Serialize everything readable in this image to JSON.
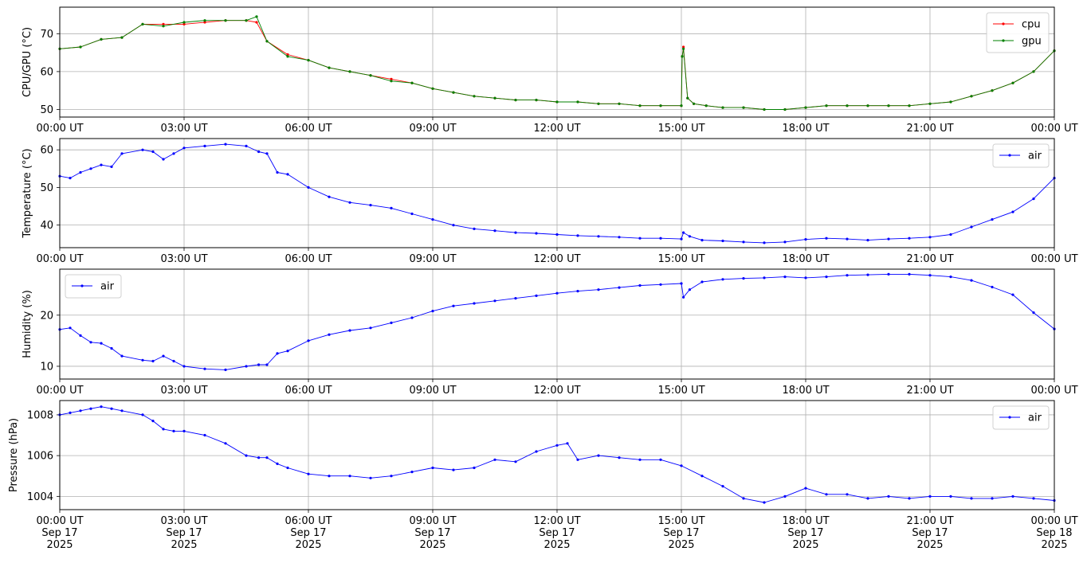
{
  "chart_data": [
    {
      "type": "line",
      "ylabel": "CPU/GPU (°C)",
      "ylim": [
        48,
        77
      ],
      "yticks": [
        50,
        60,
        70
      ],
      "xlim": [
        "2025-09-17T00:00Z",
        "2025-09-18T00:00Z"
      ],
      "xtick_labels": [
        "00:00 UT",
        "03:00 UT",
        "06:00 UT",
        "09:00 UT",
        "12:00 UT",
        "15:00 UT",
        "18:00 UT",
        "21:00 UT",
        "00:00 UT"
      ],
      "grid": true,
      "legend_position": "top-right",
      "series": [
        {
          "name": "cpu",
          "color": "#ff0000",
          "marker": "dot",
          "x_hours": [
            0,
            0.5,
            1,
            1.5,
            2,
            2.5,
            3,
            3.5,
            4,
            4.5,
            4.75,
            5,
            5.5,
            6,
            6.5,
            7,
            7.5,
            8,
            8.5,
            9,
            9.5,
            10,
            10.5,
            11,
            11.5,
            12,
            12.5,
            13,
            13.5,
            14,
            14.5,
            15,
            15.02,
            15.05,
            15.15,
            15.3,
            15.6,
            16,
            16.5,
            17,
            17.5,
            18,
            18.5,
            19,
            19.5,
            20,
            20.5,
            21,
            21.5,
            22,
            22.5,
            23,
            23.5,
            24
          ],
          "values": [
            66,
            66.5,
            68.5,
            69,
            72.5,
            72.5,
            72.5,
            73,
            73.5,
            73.5,
            73,
            68,
            64.5,
            63,
            61,
            60,
            59,
            58,
            57,
            55.5,
            54.5,
            53.5,
            53,
            52.5,
            52.5,
            52,
            52,
            51.5,
            51.5,
            51,
            51,
            51,
            64,
            66.5,
            53,
            51.5,
            51,
            50.5,
            50.5,
            50,
            50,
            50.5,
            51,
            51,
            51,
            51,
            51,
            51.5,
            52,
            53.5,
            55,
            57,
            60,
            65.5
          ]
        },
        {
          "name": "gpu",
          "color": "#008000",
          "marker": "dot",
          "x_hours": [
            0,
            0.5,
            1,
            1.5,
            2,
            2.5,
            3,
            3.5,
            4,
            4.5,
            4.75,
            5,
            5.5,
            6,
            6.5,
            7,
            7.5,
            8,
            8.5,
            9,
            9.5,
            10,
            10.5,
            11,
            11.5,
            12,
            12.5,
            13,
            13.5,
            14,
            14.5,
            15,
            15.02,
            15.05,
            15.15,
            15.3,
            15.6,
            16,
            16.5,
            17,
            17.5,
            18,
            18.5,
            19,
            19.5,
            20,
            20.5,
            21,
            21.5,
            22,
            22.5,
            23,
            23.5,
            24
          ],
          "values": [
            66,
            66.5,
            68.5,
            69,
            72.5,
            72,
            73,
            73.5,
            73.5,
            73.5,
            74.5,
            68,
            64,
            63,
            61,
            60,
            59,
            57.5,
            57,
            55.5,
            54.5,
            53.5,
            53,
            52.5,
            52.5,
            52,
            52,
            51.5,
            51.5,
            51,
            51,
            51,
            64,
            66,
            53,
            51.5,
            51,
            50.5,
            50.5,
            50,
            50,
            50.5,
            51,
            51,
            51,
            51,
            51,
            51.5,
            52,
            53.5,
            55,
            57,
            60,
            65.5
          ]
        }
      ]
    },
    {
      "type": "line",
      "ylabel": "Temperature (°C)",
      "ylim": [
        34,
        63
      ],
      "yticks": [
        40,
        50,
        60
      ],
      "xlim": [
        "2025-09-17T00:00Z",
        "2025-09-18T00:00Z"
      ],
      "xtick_labels": [
        "00:00 UT",
        "03:00 UT",
        "06:00 UT",
        "09:00 UT",
        "12:00 UT",
        "15:00 UT",
        "18:00 UT",
        "21:00 UT",
        "00:00 UT"
      ],
      "grid": true,
      "legend_position": "top-right",
      "series": [
        {
          "name": "air",
          "color": "#0000ff",
          "marker": "dot",
          "x_hours": [
            0,
            0.25,
            0.5,
            0.75,
            1,
            1.25,
            1.5,
            2,
            2.25,
            2.5,
            2.75,
            3,
            3.5,
            4,
            4.5,
            4.8,
            5,
            5.25,
            5.5,
            6,
            6.5,
            7,
            7.5,
            8,
            8.5,
            9,
            9.5,
            10,
            10.5,
            11,
            11.5,
            12,
            12.5,
            13,
            13.5,
            14,
            14.5,
            15,
            15.05,
            15.2,
            15.5,
            16,
            16.5,
            17,
            17.5,
            18,
            18.5,
            19,
            19.5,
            20,
            20.5,
            21,
            21.5,
            22,
            22.5,
            23,
            23.5,
            24
          ],
          "values": [
            53,
            52.5,
            54,
            55,
            56,
            55.5,
            59,
            60,
            59.5,
            57.5,
            59,
            60.5,
            61,
            61.5,
            61,
            59.5,
            59,
            54,
            53.5,
            50,
            47.5,
            46,
            45.3,
            44.5,
            43,
            41.5,
            40,
            39,
            38.5,
            38,
            37.8,
            37.5,
            37.2,
            37,
            36.8,
            36.5,
            36.5,
            36.3,
            38,
            37,
            36,
            35.8,
            35.5,
            35.3,
            35.5,
            36.2,
            36.5,
            36.3,
            36,
            36.3,
            36.5,
            36.8,
            37.5,
            39.5,
            41.5,
            43.5,
            47,
            52.5
          ]
        }
      ]
    },
    {
      "type": "line",
      "ylabel": "Humidity (%)",
      "ylim": [
        7.5,
        29
      ],
      "yticks": [
        10,
        20
      ],
      "xlim": [
        "2025-09-17T00:00Z",
        "2025-09-18T00:00Z"
      ],
      "xtick_labels": [
        "00:00 UT",
        "03:00 UT",
        "06:00 UT",
        "09:00 UT",
        "12:00 UT",
        "15:00 UT",
        "18:00 UT",
        "21:00 UT",
        "00:00 UT"
      ],
      "grid": true,
      "legend_position": "top-left",
      "series": [
        {
          "name": "air",
          "color": "#0000ff",
          "marker": "dot",
          "x_hours": [
            0,
            0.25,
            0.5,
            0.75,
            1,
            1.25,
            1.5,
            2,
            2.25,
            2.5,
            2.75,
            3,
            3.5,
            4,
            4.5,
            4.8,
            5,
            5.25,
            5.5,
            6,
            6.5,
            7,
            7.5,
            8,
            8.5,
            9,
            9.5,
            10,
            10.5,
            11,
            11.5,
            12,
            12.5,
            13,
            13.5,
            14,
            14.5,
            15,
            15.05,
            15.2,
            15.5,
            16,
            16.5,
            17,
            17.5,
            18,
            18.5,
            19,
            19.5,
            20,
            20.5,
            21,
            21.5,
            22,
            22.5,
            23,
            23.5,
            24
          ],
          "values": [
            17.2,
            17.5,
            16,
            14.7,
            14.5,
            13.5,
            12,
            11.2,
            11,
            12,
            11,
            10,
            9.5,
            9.3,
            10,
            10.3,
            10.3,
            12.5,
            13,
            15,
            16.2,
            17,
            17.5,
            18.5,
            19.5,
            20.8,
            21.8,
            22.3,
            22.8,
            23.3,
            23.8,
            24.3,
            24.7,
            25,
            25.4,
            25.8,
            26,
            26.2,
            23.5,
            25,
            26.5,
            27,
            27.2,
            27.3,
            27.5,
            27.3,
            27.5,
            27.8,
            27.9,
            28,
            28,
            27.8,
            27.5,
            26.8,
            25.5,
            24,
            20.5,
            17.3
          ]
        }
      ]
    },
    {
      "type": "line",
      "ylabel": "Pressure (hPa)",
      "ylim": [
        1003.35,
        1008.7
      ],
      "yticks": [
        1004,
        1006,
        1008
      ],
      "xlim": [
        "2025-09-17T00:00Z",
        "2025-09-18T00:00Z"
      ],
      "xtick_labels": [
        [
          "00:00 UT",
          "Sep 17",
          "2025"
        ],
        [
          "03:00 UT",
          "Sep 17",
          "2025"
        ],
        [
          "06:00 UT",
          "Sep 17",
          "2025"
        ],
        [
          "09:00 UT",
          "Sep 17",
          "2025"
        ],
        [
          "12:00 UT",
          "Sep 17",
          "2025"
        ],
        [
          "15:00 UT",
          "Sep 17",
          "2025"
        ],
        [
          "18:00 UT",
          "Sep 17",
          "2025"
        ],
        [
          "21:00 UT",
          "Sep 17",
          "2025"
        ],
        [
          "00:00 UT",
          "Sep 18",
          "2025"
        ]
      ],
      "grid": true,
      "legend_position": "top-right",
      "series": [
        {
          "name": "air",
          "color": "#0000ff",
          "marker": "dot",
          "x_hours": [
            0,
            0.25,
            0.5,
            0.75,
            1,
            1.25,
            1.5,
            2,
            2.25,
            2.5,
            2.75,
            3,
            3.5,
            4,
            4.5,
            4.8,
            5,
            5.25,
            5.5,
            6,
            6.5,
            7,
            7.5,
            8,
            8.5,
            9,
            9.5,
            10,
            10.5,
            11,
            11.5,
            12,
            12.25,
            12.5,
            13,
            13.5,
            14,
            14.5,
            15,
            15.5,
            16,
            16.5,
            17,
            17.5,
            18,
            18.5,
            19,
            19.5,
            20,
            20.5,
            21,
            21.5,
            22,
            22.5,
            23,
            23.5,
            24
          ],
          "values": [
            1008,
            1008.1,
            1008.2,
            1008.3,
            1008.4,
            1008.3,
            1008.2,
            1008,
            1007.7,
            1007.3,
            1007.2,
            1007.2,
            1007,
            1006.6,
            1006,
            1005.9,
            1005.9,
            1005.6,
            1005.4,
            1005.1,
            1005,
            1005,
            1004.9,
            1005,
            1005.2,
            1005.4,
            1005.3,
            1005.4,
            1005.8,
            1005.7,
            1006.2,
            1006.5,
            1006.6,
            1005.8,
            1006,
            1005.9,
            1005.8,
            1005.8,
            1005.5,
            1005,
            1004.5,
            1003.9,
            1003.7,
            1004,
            1004.4,
            1004.1,
            1004.1,
            1003.9,
            1004,
            1003.9,
            1004,
            1004,
            1003.9,
            1003.9,
            1004,
            1003.9,
            1003.8
          ]
        }
      ]
    }
  ]
}
